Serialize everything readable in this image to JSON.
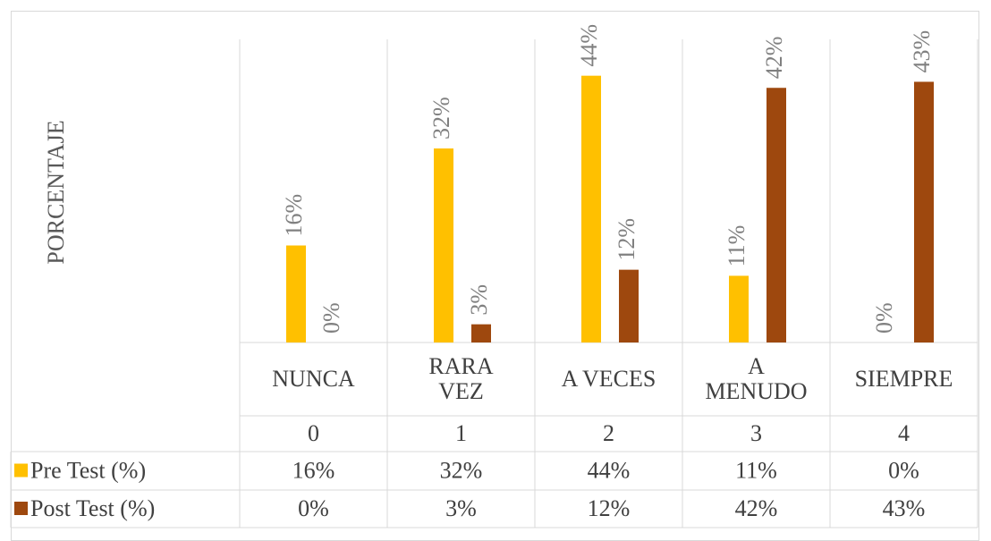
{
  "chart_data": {
    "type": "bar",
    "y_label": "PORCENTAJE",
    "categories": [
      "NUNCA",
      "RARA VEZ",
      "A VECES",
      "A MENUDO",
      "SIEMPRE"
    ],
    "codes": [
      0,
      1,
      2,
      3,
      4
    ],
    "ylim": [
      0,
      50
    ],
    "series": [
      {
        "name": "Pre Test (%)",
        "color": "#FFC000",
        "values": [
          16,
          32,
          44,
          11,
          0
        ],
        "value_labels": [
          "16%",
          "32%",
          "44%",
          "11%",
          "0%"
        ]
      },
      {
        "name": "Post Test (%)",
        "color": "#9E480E",
        "values": [
          0,
          3,
          12,
          42,
          43
        ],
        "value_labels": [
          "0%",
          "3%",
          "12%",
          "42%",
          "43%"
        ]
      }
    ]
  }
}
